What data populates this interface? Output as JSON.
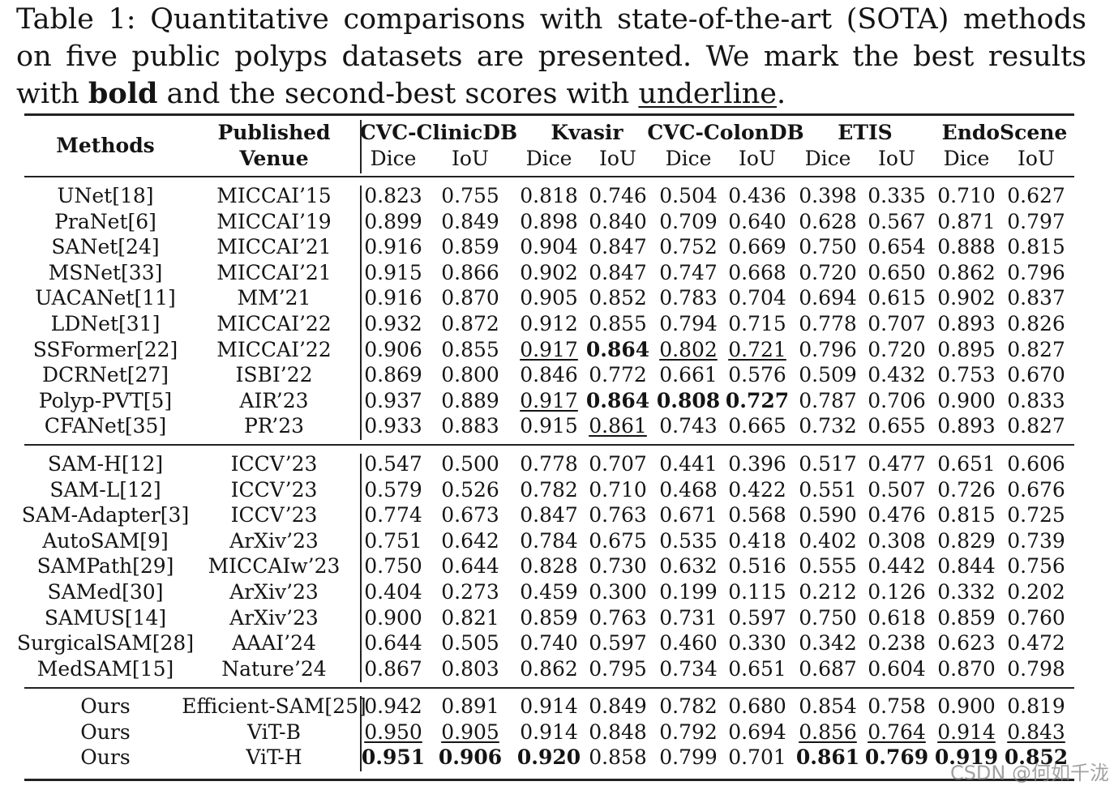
{
  "caption": {
    "part1": "Table 1: Quantitative comparisons with state-of-the-art (SOTA) methods on five public polyps datasets are presented. We mark the best results with ",
    "bold_word": "bold",
    "part2": " and the second-best scores with ",
    "underline_word": "underline",
    "part3": "."
  },
  "header": {
    "methods": "Methods",
    "published": "Published",
    "venue": "Venue",
    "datasets": [
      "CVC-ClinicDB",
      "Kvasir",
      "CVC-ColonDB",
      "ETIS",
      "EndoScene"
    ],
    "metrics": [
      "Dice",
      "IoU"
    ]
  },
  "groups": [
    [
      {
        "method": "UNet[18]",
        "venue": "MICCAI’15",
        "values": [
          "0.823",
          "0.755",
          "0.818",
          "0.746",
          "0.504",
          "0.436",
          "0.398",
          "0.335",
          "0.710",
          "0.627"
        ],
        "bold": [],
        "underline": []
      },
      {
        "method": "PraNet[6]",
        "venue": "MICCAI’19",
        "values": [
          "0.899",
          "0.849",
          "0.898",
          "0.840",
          "0.709",
          "0.640",
          "0.628",
          "0.567",
          "0.871",
          "0.797"
        ],
        "bold": [],
        "underline": []
      },
      {
        "method": "SANet[24]",
        "venue": "MICCAI’21",
        "values": [
          "0.916",
          "0.859",
          "0.904",
          "0.847",
          "0.752",
          "0.669",
          "0.750",
          "0.654",
          "0.888",
          "0.815"
        ],
        "bold": [],
        "underline": []
      },
      {
        "method": "MSNet[33]",
        "venue": "MICCAI’21",
        "values": [
          "0.915",
          "0.866",
          "0.902",
          "0.847",
          "0.747",
          "0.668",
          "0.720",
          "0.650",
          "0.862",
          "0.796"
        ],
        "bold": [],
        "underline": []
      },
      {
        "method": "UACANet[11]",
        "venue": "MM’21",
        "values": [
          "0.916",
          "0.870",
          "0.905",
          "0.852",
          "0.783",
          "0.704",
          "0.694",
          "0.615",
          "0.902",
          "0.837"
        ],
        "bold": [],
        "underline": []
      },
      {
        "method": "LDNet[31]",
        "venue": "MICCAI’22",
        "values": [
          "0.932",
          "0.872",
          "0.912",
          "0.855",
          "0.794",
          "0.715",
          "0.778",
          "0.707",
          "0.893",
          "0.826"
        ],
        "bold": [],
        "underline": []
      },
      {
        "method": "SSFormer[22]",
        "venue": "MICCAI’22",
        "values": [
          "0.906",
          "0.855",
          "0.917",
          "0.864",
          "0.802",
          "0.721",
          "0.796",
          "0.720",
          "0.895",
          "0.827"
        ],
        "bold": [
          3
        ],
        "underline": [
          2,
          4,
          5
        ]
      },
      {
        "method": "DCRNet[27]",
        "venue": "ISBI’22",
        "values": [
          "0.869",
          "0.800",
          "0.846",
          "0.772",
          "0.661",
          "0.576",
          "0.509",
          "0.432",
          "0.753",
          "0.670"
        ],
        "bold": [],
        "underline": []
      },
      {
        "method": "Polyp-PVT[5]",
        "venue": "AIR’23",
        "values": [
          "0.937",
          "0.889",
          "0.917",
          "0.864",
          "0.808",
          "0.727",
          "0.787",
          "0.706",
          "0.900",
          "0.833"
        ],
        "bold": [
          3,
          4,
          5
        ],
        "underline": [
          2
        ]
      },
      {
        "method": "CFANet[35]",
        "venue": "PR’23",
        "values": [
          "0.933",
          "0.883",
          "0.915",
          "0.861",
          "0.743",
          "0.665",
          "0.732",
          "0.655",
          "0.893",
          "0.827"
        ],
        "bold": [],
        "underline": [
          3
        ]
      }
    ],
    [
      {
        "method": "SAM-H[12]",
        "venue": "ICCV’23",
        "values": [
          "0.547",
          "0.500",
          "0.778",
          "0.707",
          "0.441",
          "0.396",
          "0.517",
          "0.477",
          "0.651",
          "0.606"
        ],
        "bold": [],
        "underline": []
      },
      {
        "method": "SAM-L[12]",
        "venue": "ICCV’23",
        "values": [
          "0.579",
          "0.526",
          "0.782",
          "0.710",
          "0.468",
          "0.422",
          "0.551",
          "0.507",
          "0.726",
          "0.676"
        ],
        "bold": [],
        "underline": []
      },
      {
        "method": "SAM-Adapter[3]",
        "venue": "ICCV’23",
        "values": [
          "0.774",
          "0.673",
          "0.847",
          "0.763",
          "0.671",
          "0.568",
          "0.590",
          "0.476",
          "0.815",
          "0.725"
        ],
        "bold": [],
        "underline": []
      },
      {
        "method": "AutoSAM[9]",
        "venue": "ArXiv’23",
        "values": [
          "0.751",
          "0.642",
          "0.784",
          "0.675",
          "0.535",
          "0.418",
          "0.402",
          "0.308",
          "0.829",
          "0.739"
        ],
        "bold": [],
        "underline": []
      },
      {
        "method": "SAMPath[29]",
        "venue": "MICCAIw’23",
        "values": [
          "0.750",
          "0.644",
          "0.828",
          "0.730",
          "0.632",
          "0.516",
          "0.555",
          "0.442",
          "0.844",
          "0.756"
        ],
        "bold": [],
        "underline": []
      },
      {
        "method": "SAMed[30]",
        "venue": "ArXiv’23",
        "values": [
          "0.404",
          "0.273",
          "0.459",
          "0.300",
          "0.199",
          "0.115",
          "0.212",
          "0.126",
          "0.332",
          "0.202"
        ],
        "bold": [],
        "underline": []
      },
      {
        "method": "SAMUS[14]",
        "venue": "ArXiv’23",
        "values": [
          "0.900",
          "0.821",
          "0.859",
          "0.763",
          "0.731",
          "0.597",
          "0.750",
          "0.618",
          "0.859",
          "0.760"
        ],
        "bold": [],
        "underline": []
      },
      {
        "method": "SurgicalSAM[28]",
        "venue": "AAAI’24",
        "values": [
          "0.644",
          "0.505",
          "0.740",
          "0.597",
          "0.460",
          "0.330",
          "0.342",
          "0.238",
          "0.623",
          "0.472"
        ],
        "bold": [],
        "underline": []
      },
      {
        "method": "MedSAM[15]",
        "venue": "Nature’24",
        "values": [
          "0.867",
          "0.803",
          "0.862",
          "0.795",
          "0.734",
          "0.651",
          "0.687",
          "0.604",
          "0.870",
          "0.798"
        ],
        "bold": [],
        "underline": []
      }
    ],
    [
      {
        "method": "Ours",
        "venue": "Efficient-SAM[25]",
        "values": [
          "0.942",
          "0.891",
          "0.914",
          "0.849",
          "0.782",
          "0.680",
          "0.854",
          "0.758",
          "0.900",
          "0.819"
        ],
        "bold": [],
        "underline": []
      },
      {
        "method": "Ours",
        "venue": "ViT-B",
        "values": [
          "0.950",
          "0.905",
          "0.914",
          "0.848",
          "0.792",
          "0.694",
          "0.856",
          "0.764",
          "0.914",
          "0.843"
        ],
        "bold": [],
        "underline": [
          0,
          1,
          6,
          7,
          8,
          9
        ]
      },
      {
        "method": "Ours",
        "venue": "ViT-H",
        "values": [
          "0.951",
          "0.906",
          "0.920",
          "0.858",
          "0.799",
          "0.701",
          "0.861",
          "0.769",
          "0.919",
          "0.852"
        ],
        "bold": [
          0,
          1,
          2,
          6,
          7,
          8,
          9
        ],
        "underline": []
      }
    ]
  ],
  "watermark": "CSDN @何如千泷"
}
